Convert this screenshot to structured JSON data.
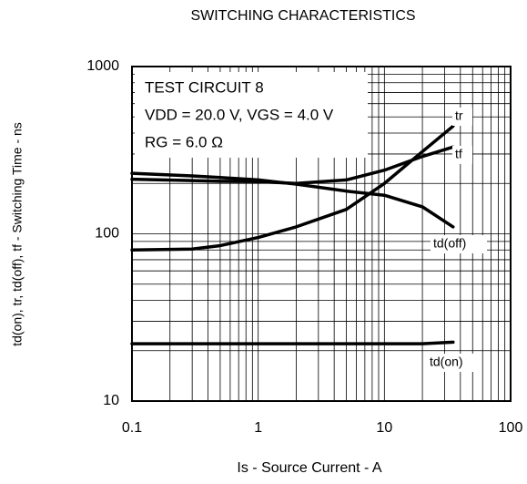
{
  "chart_data": {
    "type": "line",
    "title": "SWITCHING CHARACTERISTICS",
    "x_label": "Is - Source Current - A",
    "y_label": "td(on), tr, td(off), tf - Switching Time - ns",
    "annotations": [
      "TEST CIRCUIT 8",
      "VDD = 20.0 V, VGS = 4.0 V",
      "RG = 6.0 Ω"
    ],
    "xscale": "log",
    "yscale": "log",
    "grid": true,
    "xlim": [
      0.1,
      100
    ],
    "ylim": [
      10,
      1000
    ],
    "xticks": [
      0.1,
      1,
      10,
      100
    ],
    "yticks": [
      10,
      100,
      1000
    ],
    "x": [
      0.1,
      0.3,
      0.5,
      1,
      2,
      5,
      10,
      20,
      35
    ],
    "series": [
      {
        "name": "tr",
        "color": "#000000",
        "values": [
          80,
          81,
          85,
          95,
          110,
          140,
          200,
          310,
          440
        ]
      },
      {
        "name": "tf",
        "color": "#000000",
        "values": [
          212,
          208,
          206,
          205,
          200,
          210,
          240,
          290,
          330
        ]
      },
      {
        "name": "td(off)",
        "color": "#000000",
        "values": [
          230,
          222,
          217,
          210,
          198,
          180,
          170,
          145,
          110
        ]
      },
      {
        "name": "td(on)",
        "color": "#000000",
        "values": [
          22,
          22,
          22,
          22,
          22,
          22,
          22,
          22,
          22.5
        ]
      }
    ]
  }
}
